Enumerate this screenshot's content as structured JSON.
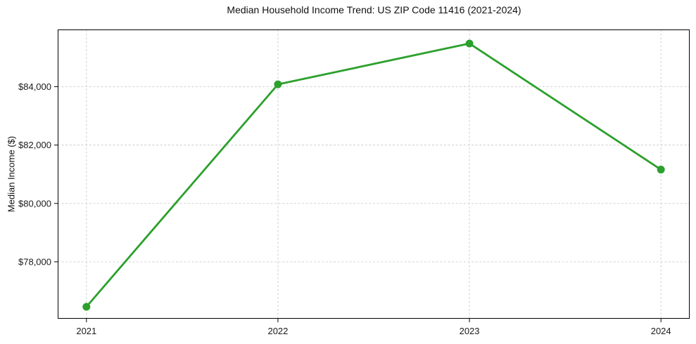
{
  "chart_data": {
    "type": "line",
    "title": "Median Household Income Trend: US ZIP Code 11416 (2021-2024)",
    "xlabel": "",
    "ylabel": "Median Income ($)",
    "categories": [
      "2021",
      "2022",
      "2023",
      "2024"
    ],
    "x": [
      2021,
      2022,
      2023,
      2024
    ],
    "values": [
      76460,
      84080,
      85480,
      81160
    ],
    "y_ticks": [
      {
        "value": 78000,
        "label": "$78,000"
      },
      {
        "value": 80000,
        "label": "$80,000"
      },
      {
        "value": 82000,
        "label": "$82,000"
      },
      {
        "value": 84000,
        "label": "$84,000"
      }
    ],
    "xlim": [
      2020.85,
      2024.15
    ],
    "ylim": [
      76050,
      85960
    ],
    "grid": true,
    "grid_style": "dashed",
    "legend_position": "none",
    "line_color": "#2ca02c",
    "marker": "circle",
    "colors": {
      "grid": "#cccccc",
      "spine": "#000000",
      "text": "#1a1a1a",
      "background": "#ffffff"
    }
  }
}
